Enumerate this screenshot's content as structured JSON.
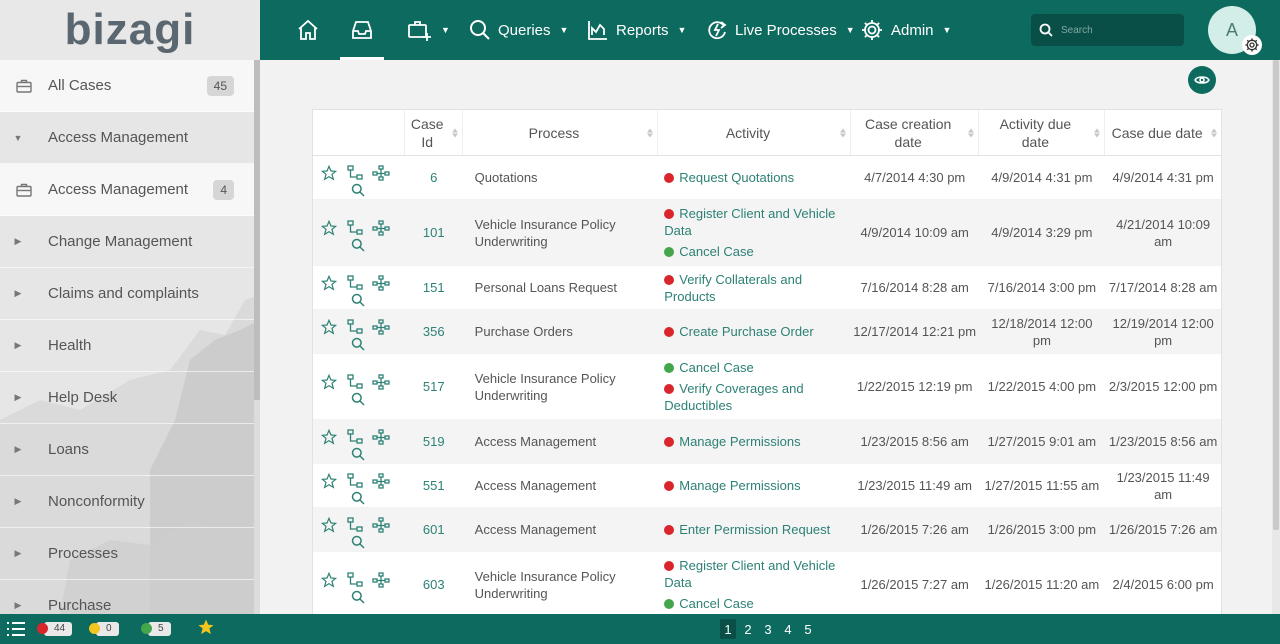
{
  "brand": {
    "logo_text": "bizagi"
  },
  "sidebar": {
    "items": [
      {
        "label": "All Cases",
        "badge": "45",
        "icon": "briefcase-icon",
        "style": "white"
      },
      {
        "label": "Access Management",
        "badge": "",
        "icon": "caret-down-icon",
        "style": "grey"
      },
      {
        "label": "Access Management",
        "badge": "4",
        "icon": "briefcase-icon",
        "style": "white"
      },
      {
        "label": "Change Management",
        "badge": "",
        "icon": "caret-right-icon",
        "style": "grey"
      },
      {
        "label": "Claims and complaints",
        "badge": "",
        "icon": "caret-right-icon",
        "style": "grey"
      },
      {
        "label": "Health",
        "badge": "",
        "icon": "caret-right-icon",
        "style": "grey"
      },
      {
        "label": "Help Desk",
        "badge": "",
        "icon": "caret-right-icon",
        "style": "grey"
      },
      {
        "label": "Loans",
        "badge": "",
        "icon": "caret-right-icon",
        "style": "grey"
      },
      {
        "label": "Nonconformity",
        "badge": "",
        "icon": "caret-right-icon",
        "style": "grey"
      },
      {
        "label": "Processes",
        "badge": "",
        "icon": "caret-right-icon",
        "style": "grey"
      },
      {
        "label": "Purchase",
        "badge": "",
        "icon": "caret-right-icon",
        "style": "grey"
      }
    ]
  },
  "nav": {
    "queries": "Queries",
    "reports": "Reports",
    "live_processes": "Live Processes",
    "admin": "Admin",
    "search_placeholder": "Search",
    "avatar_initial": "A"
  },
  "grid": {
    "headers": [
      "",
      "Case Id",
      "Process",
      "Activity",
      "Case creation date",
      "Activity due date",
      "Case due date"
    ],
    "rows": [
      {
        "id": "6",
        "process": "Quotations",
        "activities": [
          {
            "status": "red",
            "label": "Request Quotations"
          }
        ],
        "created": "4/7/2014 4:30 pm",
        "activity_due": "4/9/2014 4:31 pm",
        "case_due": "4/9/2014 4:31 pm"
      },
      {
        "id": "101",
        "process": "Vehicle Insurance Policy Underwriting",
        "activities": [
          {
            "status": "red",
            "label": "Register Client and Vehicle Data"
          },
          {
            "status": "green",
            "label": "Cancel Case"
          }
        ],
        "created": "4/9/2014 10:09 am",
        "activity_due": "4/9/2014 3:29 pm",
        "case_due": "4/21/2014 10:09 am"
      },
      {
        "id": "151",
        "process": "Personal Loans Request",
        "activities": [
          {
            "status": "red",
            "label": "Verify Collaterals and Products"
          }
        ],
        "created": "7/16/2014 8:28 am",
        "activity_due": "7/16/2014 3:00 pm",
        "case_due": "7/17/2014 8:28 am"
      },
      {
        "id": "356",
        "process": "Purchase Orders",
        "activities": [
          {
            "status": "red",
            "label": "Create Purchase Order"
          }
        ],
        "created": "12/17/2014 12:21 pm",
        "activity_due": "12/18/2014 12:00 pm",
        "case_due": "12/19/2014 12:00 pm"
      },
      {
        "id": "517",
        "process": "Vehicle Insurance Policy Underwriting",
        "activities": [
          {
            "status": "green",
            "label": "Cancel Case"
          },
          {
            "status": "red",
            "label": "Verify Coverages and Deductibles"
          }
        ],
        "created": "1/22/2015 12:19 pm",
        "activity_due": "1/22/2015 4:00 pm",
        "case_due": "2/3/2015 12:00 pm"
      },
      {
        "id": "519",
        "process": "Access Management",
        "activities": [
          {
            "status": "red",
            "label": "Manage Permissions"
          }
        ],
        "created": "1/23/2015 8:56 am",
        "activity_due": "1/27/2015 9:01 am",
        "case_due": "1/23/2015 8:56 am"
      },
      {
        "id": "551",
        "process": "Access Management",
        "activities": [
          {
            "status": "red",
            "label": "Manage Permissions"
          }
        ],
        "created": "1/23/2015 11:49 am",
        "activity_due": "1/27/2015 11:55 am",
        "case_due": "1/23/2015 11:49 am"
      },
      {
        "id": "601",
        "process": "Access Management",
        "activities": [
          {
            "status": "red",
            "label": "Enter Permission Request"
          }
        ],
        "created": "1/26/2015 7:26 am",
        "activity_due": "1/26/2015 3:00 pm",
        "case_due": "1/26/2015 7:26 am"
      },
      {
        "id": "603",
        "process": "Vehicle Insurance Policy Underwriting",
        "activities": [
          {
            "status": "red",
            "label": "Register Client and Vehicle Data"
          },
          {
            "status": "green",
            "label": "Cancel Case"
          }
        ],
        "created": "1/26/2015 7:27 am",
        "activity_due": "1/26/2015 11:20 am",
        "case_due": "2/4/2015 6:00 pm"
      }
    ]
  },
  "footer": {
    "overdue_count": "44",
    "due_today_count": "0",
    "on_time_count": "5",
    "pages": [
      "1",
      "2",
      "3",
      "4",
      "5"
    ],
    "current_page": "1"
  },
  "colors": {
    "brand": "#0d6a5f",
    "brand_dark": "#0a4f47",
    "link": "#2d8175",
    "red": "#d9262c",
    "yellow": "#f2c61f",
    "green": "#43a64a"
  }
}
